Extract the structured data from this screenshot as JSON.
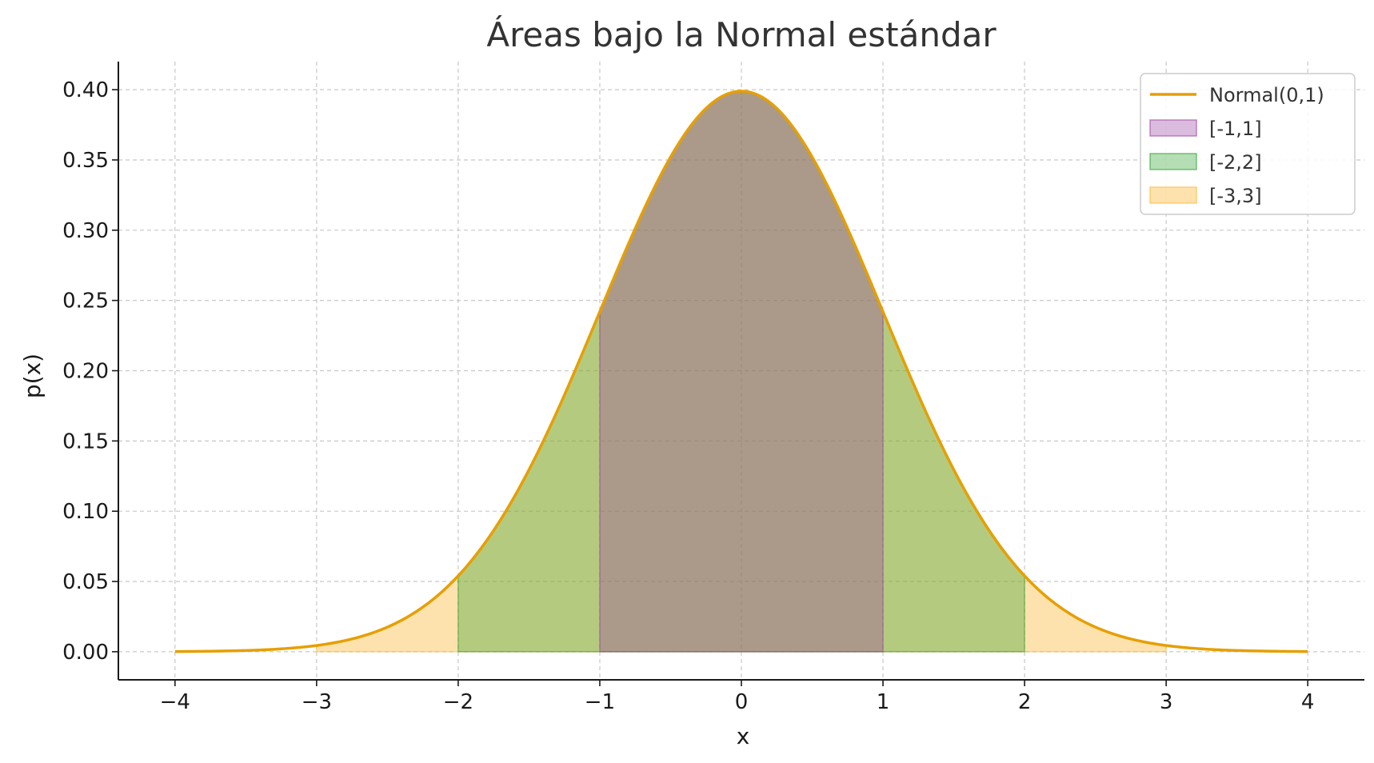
{
  "chart_data": {
    "type": "area",
    "title": "Áreas bajo la Normal estándar",
    "xlabel": "x",
    "ylabel": "p(x)",
    "xlim": [
      -4.4,
      4.4
    ],
    "ylim": [
      -0.02,
      0.42
    ],
    "x_range": [
      -4,
      4
    ],
    "xticks": [
      -4,
      -3,
      -2,
      -1,
      0,
      1,
      2,
      3,
      4
    ],
    "xtick_labels": [
      "−4",
      "−3",
      "−2",
      "−1",
      "0",
      "1",
      "2",
      "3",
      "4"
    ],
    "yticks": [
      0.0,
      0.05,
      0.1,
      0.15,
      0.2,
      0.25,
      0.3,
      0.35,
      0.4
    ],
    "ytick_labels": [
      "0.00",
      "0.05",
      "0.10",
      "0.15",
      "0.20",
      "0.25",
      "0.30",
      "0.35",
      "0.40"
    ],
    "grid": true,
    "legend_position": "top-right",
    "series": [
      {
        "name": "Normal(0,1)",
        "kind": "line",
        "color": "#E69F00",
        "function": "standard-normal-pdf",
        "x": [
          -4,
          -3.5,
          -3,
          -2.5,
          -2,
          -1.5,
          -1,
          -0.5,
          0,
          0.5,
          1,
          1.5,
          2,
          2.5,
          3,
          3.5,
          4
        ],
        "y": [
          0.0001,
          0.0009,
          0.0044,
          0.0175,
          0.054,
          0.1295,
          0.242,
          0.3521,
          0.3989,
          0.3521,
          0.242,
          0.1295,
          0.054,
          0.0175,
          0.0044,
          0.0009,
          0.0001
        ]
      }
    ],
    "shaded_regions": [
      {
        "name": "[-3,3]",
        "from": -3,
        "to": 3,
        "color": "#FDB732",
        "opacity": 0.4
      },
      {
        "name": "[-2,2]",
        "from": -2,
        "to": 2,
        "color": "#2CA02C",
        "opacity": 0.35
      },
      {
        "name": "[-1,1]",
        "from": -1,
        "to": 1,
        "color": "#9B3FA0",
        "opacity": 0.35
      }
    ],
    "legend_order": [
      "Normal(0,1)",
      "[-1,1]",
      "[-2,2]",
      "[-3,3]"
    ]
  }
}
